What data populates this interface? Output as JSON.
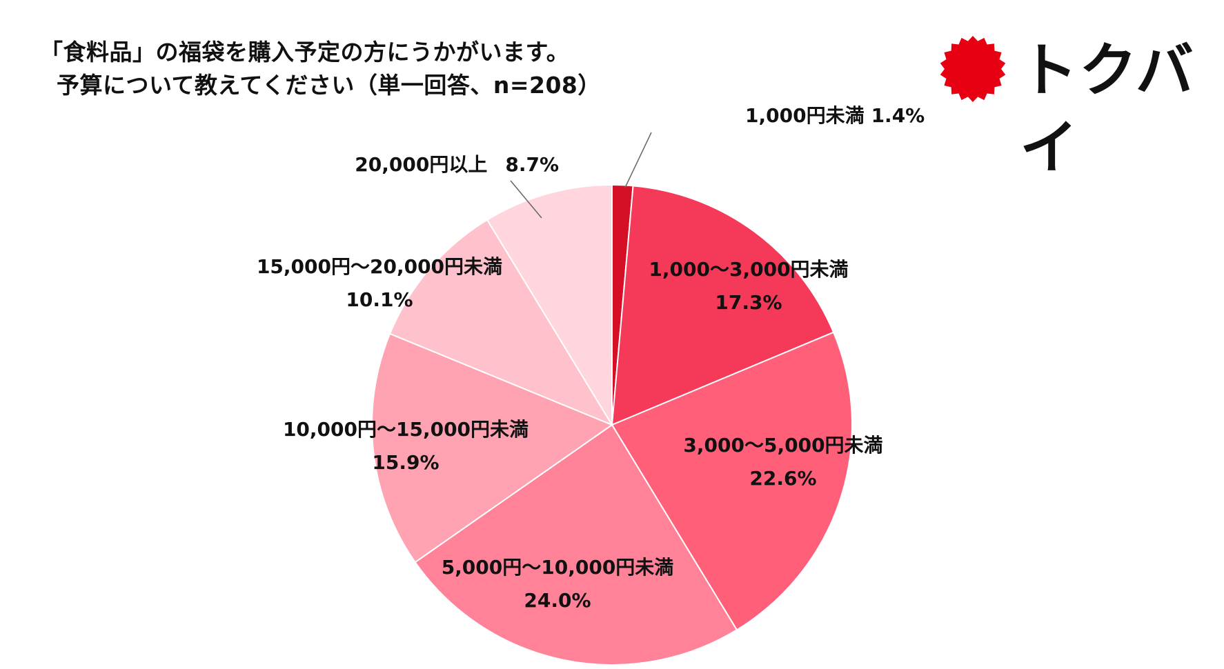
{
  "title": {
    "line1": "「食料品」の福袋を購入予定の方にうかがいます。",
    "line2": "予算について教えてください（単一回答、n=208）"
  },
  "logo": {
    "text": "トクバイ",
    "icon": "red-sun-badge-icon",
    "color": "#e60012"
  },
  "chart_data": {
    "type": "pie",
    "title": "「食料品」の福袋を購入予定の方にうかがいます。予算について教えてください（単一回答、n=208）",
    "start_angle": "12 o'clock",
    "direction": "clockwise",
    "categories": [
      "1,000円未満",
      "1,000〜3,000円未満",
      "3,000〜5,000円未満",
      "5,000円〜10,000円未満",
      "10,000円〜15,000円未満",
      "15,000円〜20,000円未満",
      "20,000円以上"
    ],
    "values": [
      1.4,
      17.3,
      22.6,
      24.0,
      15.9,
      10.1,
      8.7
    ],
    "value_labels": [
      "1.4%",
      "17.3%",
      "22.6%",
      "24.0%",
      "15.9%",
      "10.1%",
      "8.7%"
    ],
    "colors": [
      "#d50f25",
      "#f43a58",
      "#ff5f79",
      "#ff8299",
      "#ffa3b2",
      "#ffc1cb",
      "#ffd6dd"
    ],
    "unit": "%"
  }
}
